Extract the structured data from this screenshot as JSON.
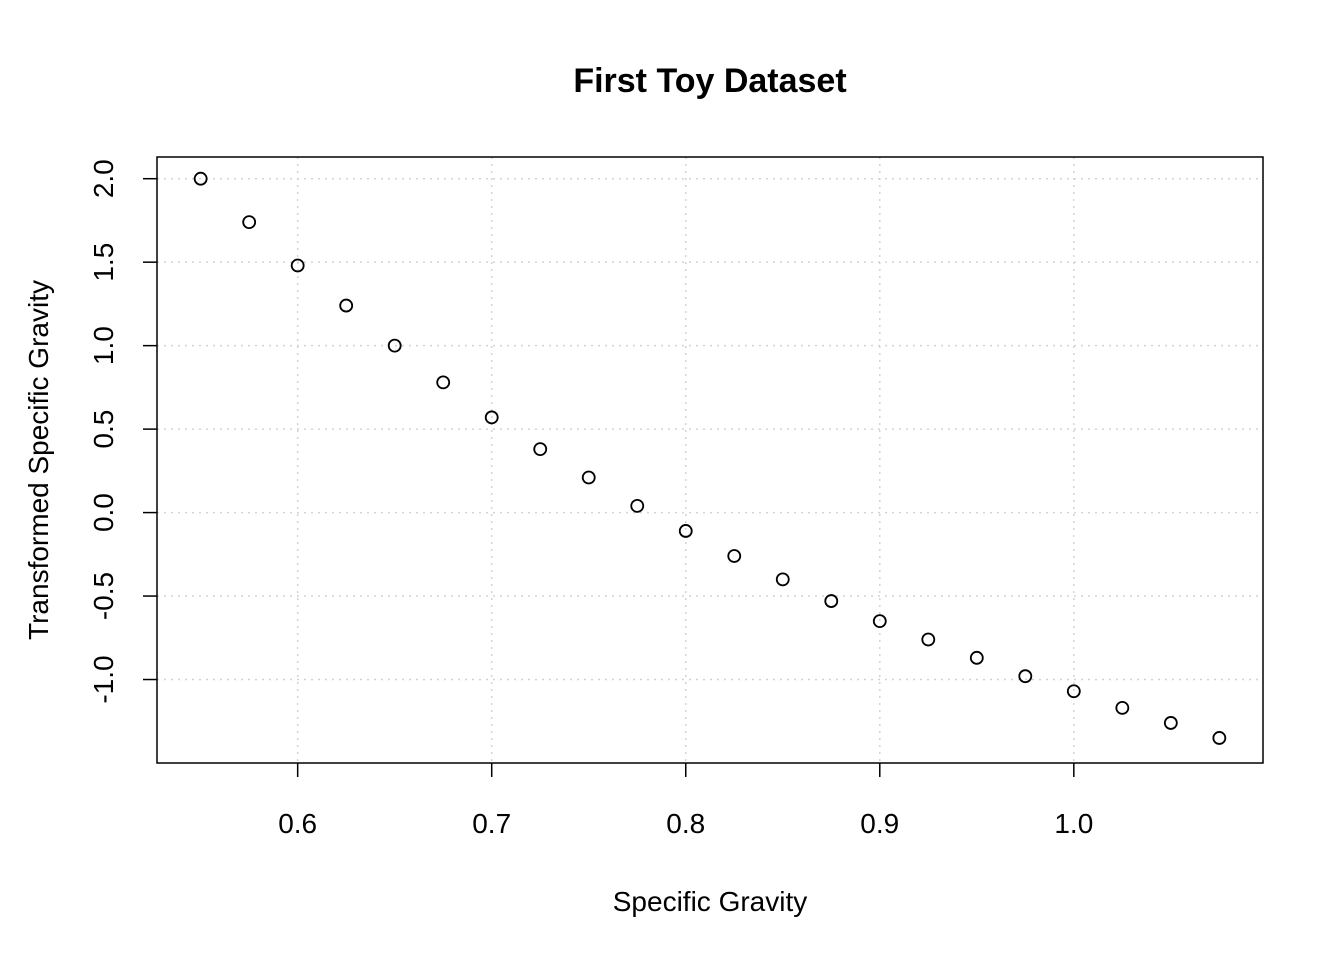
{
  "chart_data": {
    "type": "scatter",
    "title": "First Toy Dataset",
    "xlabel": "Specific Gravity",
    "ylabel": "Transformed Specific Gravity",
    "xlim": [
      0.5275,
      1.0975
    ],
    "ylim": [
      -1.5,
      2.13
    ],
    "x_ticks": [
      0.6,
      0.7,
      0.8,
      0.9,
      1.0
    ],
    "x_tick_labels": [
      "0.6",
      "0.7",
      "0.8",
      "0.9",
      "1.0"
    ],
    "y_ticks": [
      -1.0,
      -0.5,
      0.0,
      0.5,
      1.0,
      1.5,
      2.0
    ],
    "y_tick_labels": [
      "-1.0",
      "-0.5",
      "0.0",
      "0.5",
      "1.0",
      "1.5",
      "2.0"
    ],
    "grid": true,
    "series": [
      {
        "marker": "open-circle",
        "x": [
          0.55,
          0.575,
          0.6,
          0.625,
          0.65,
          0.675,
          0.7,
          0.725,
          0.75,
          0.775,
          0.8,
          0.825,
          0.85,
          0.875,
          0.9,
          0.925,
          0.95,
          0.975,
          1.0,
          1.025,
          1.05,
          1.075
        ],
        "y": [
          2.0,
          1.74,
          1.48,
          1.24,
          1.0,
          0.78,
          0.57,
          0.38,
          0.21,
          0.04,
          -0.11,
          -0.26,
          -0.4,
          -0.53,
          -0.65,
          -0.76,
          -0.87,
          -0.98,
          -1.07,
          -1.17,
          -1.26,
          -1.35
        ]
      }
    ]
  }
}
